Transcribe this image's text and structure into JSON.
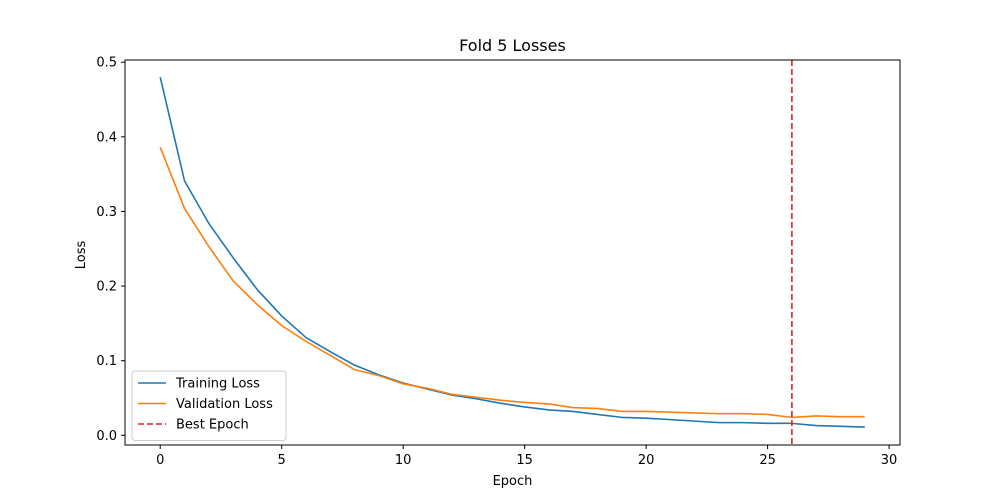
{
  "chart_data": {
    "type": "line",
    "title": "Fold 5 Losses",
    "xlabel": "Epoch",
    "ylabel": "Loss",
    "xlim": [
      -1.45,
      30.45
    ],
    "ylim": [
      -0.013,
      0.503
    ],
    "xticks": [
      0,
      5,
      10,
      15,
      20,
      25,
      30
    ],
    "yticks": [
      0.0,
      0.1,
      0.2,
      0.3,
      0.4,
      0.5
    ],
    "ytick_labels": [
      "0.0",
      "0.1",
      "0.2",
      "0.3",
      "0.4",
      "0.5"
    ],
    "grid": false,
    "legend_position": "lower-left",
    "x": [
      0,
      1,
      2,
      3,
      4,
      5,
      6,
      7,
      8,
      9,
      10,
      11,
      12,
      13,
      14,
      15,
      16,
      17,
      18,
      19,
      20,
      21,
      22,
      23,
      24,
      25,
      26,
      27,
      28,
      29
    ],
    "series": [
      {
        "name": "Training Loss",
        "color": "#1f77b4",
        "style": "solid",
        "values": [
          0.48,
          0.341,
          0.284,
          0.238,
          0.195,
          0.16,
          0.131,
          0.112,
          0.094,
          0.081,
          0.07,
          0.062,
          0.054,
          0.049,
          0.043,
          0.038,
          0.034,
          0.032,
          0.028,
          0.024,
          0.023,
          0.021,
          0.019,
          0.017,
          0.017,
          0.016,
          0.016,
          0.013,
          0.012,
          0.011
        ]
      },
      {
        "name": "Validation Loss",
        "color": "#ff7f0e",
        "style": "solid",
        "values": [
          0.386,
          0.304,
          0.253,
          0.207,
          0.175,
          0.147,
          0.126,
          0.107,
          0.088,
          0.08,
          0.069,
          0.063,
          0.055,
          0.051,
          0.047,
          0.044,
          0.042,
          0.037,
          0.036,
          0.032,
          0.032,
          0.031,
          0.03,
          0.029,
          0.029,
          0.028,
          0.024,
          0.026,
          0.025,
          0.025
        ]
      }
    ],
    "vlines": [
      {
        "name": "Best Epoch",
        "x": 26,
        "color": "#d62728",
        "style": "dashed"
      }
    ]
  }
}
